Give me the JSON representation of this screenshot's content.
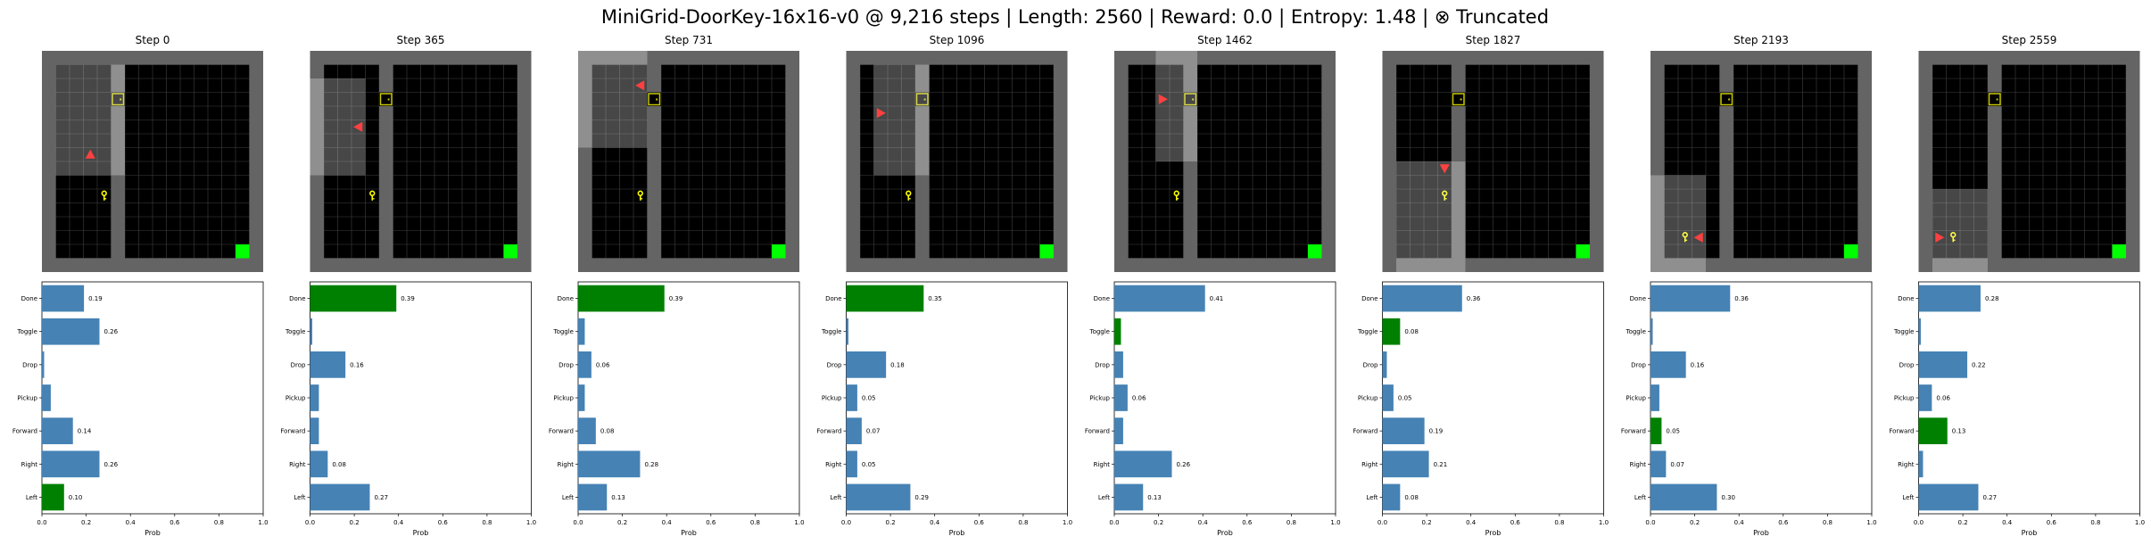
{
  "suptitle": "MiniGrid-DoorKey-16x16-v0 @ 9,216 steps | Length: 2560 | Reward: 0.0 | Entropy: 1.48 | ⊗ Truncated",
  "colors": {
    "bar": "#4682b4",
    "selected_bar": "#008000",
    "wall": "#646464",
    "floor": "#000000",
    "grid_line": "#404040",
    "door": "#c8c800",
    "key": "#ffff00",
    "goal": "#00ff00",
    "agent": "#ff4040",
    "visible_overlay": "#ffffff"
  },
  "chart_data": [
    {
      "type": "bar",
      "orientation": "horizontal",
      "title": "Step 0",
      "xlabel": "Prob",
      "xlim": [
        0,
        1
      ],
      "xticks": [
        "0.0",
        "0.2",
        "0.4",
        "0.6",
        "0.8",
        "1.0"
      ],
      "categories": [
        "Done",
        "Toggle",
        "Drop",
        "Pickup",
        "Forward",
        "Right",
        "Left"
      ],
      "values": [
        0.19,
        0.26,
        0.01,
        0.04,
        0.14,
        0.26,
        0.1
      ],
      "value_labels": [
        "0.19",
        "0.26",
        "",
        "",
        "0.14",
        "0.26",
        "0.10"
      ],
      "selected": "Left"
    },
    {
      "type": "bar",
      "orientation": "horizontal",
      "title": "Step 365",
      "xlabel": "Prob",
      "xlim": [
        0,
        1
      ],
      "xticks": [
        "0.0",
        "0.2",
        "0.4",
        "0.6",
        "0.8",
        "1.0"
      ],
      "categories": [
        "Done",
        "Toggle",
        "Drop",
        "Pickup",
        "Forward",
        "Right",
        "Left"
      ],
      "values": [
        0.39,
        0.01,
        0.16,
        0.04,
        0.04,
        0.08,
        0.27
      ],
      "value_labels": [
        "0.39",
        "",
        "0.16",
        "",
        "",
        "0.08",
        "0.27"
      ],
      "selected": "Done"
    },
    {
      "type": "bar",
      "orientation": "horizontal",
      "title": "Step 731",
      "xlabel": "Prob",
      "xlim": [
        0,
        1
      ],
      "xticks": [
        "0.0",
        "0.2",
        "0.4",
        "0.6",
        "0.8",
        "1.0"
      ],
      "categories": [
        "Done",
        "Toggle",
        "Drop",
        "Pickup",
        "Forward",
        "Right",
        "Left"
      ],
      "values": [
        0.39,
        0.03,
        0.06,
        0.03,
        0.08,
        0.28,
        0.13
      ],
      "value_labels": [
        "0.39",
        "",
        "0.06",
        "",
        "0.08",
        "0.28",
        "0.13"
      ],
      "selected": "Done"
    },
    {
      "type": "bar",
      "orientation": "horizontal",
      "title": "Step 1096",
      "xlabel": "Prob",
      "xlim": [
        0,
        1
      ],
      "xticks": [
        "0.0",
        "0.2",
        "0.4",
        "0.6",
        "0.8",
        "1.0"
      ],
      "categories": [
        "Done",
        "Toggle",
        "Drop",
        "Pickup",
        "Forward",
        "Right",
        "Left"
      ],
      "values": [
        0.35,
        0.01,
        0.18,
        0.05,
        0.07,
        0.05,
        0.29
      ],
      "value_labels": [
        "0.35",
        "",
        "0.18",
        "0.05",
        "0.07",
        "0.05",
        "0.29"
      ],
      "selected": "Done"
    },
    {
      "type": "bar",
      "orientation": "horizontal",
      "title": "Step 1462",
      "xlabel": "Prob",
      "xlim": [
        0,
        1
      ],
      "xticks": [
        "0.0",
        "0.2",
        "0.4",
        "0.6",
        "0.8",
        "1.0"
      ],
      "categories": [
        "Done",
        "Toggle",
        "Drop",
        "Pickup",
        "Forward",
        "Right",
        "Left"
      ],
      "values": [
        0.41,
        0.03,
        0.04,
        0.06,
        0.04,
        0.26,
        0.13
      ],
      "value_labels": [
        "0.41",
        "",
        "",
        "0.06",
        "",
        "0.26",
        "0.13"
      ],
      "selected": "Toggle"
    },
    {
      "type": "bar",
      "orientation": "horizontal",
      "title": "Step 1827",
      "xlabel": "Prob",
      "xlim": [
        0,
        1
      ],
      "xticks": [
        "0.0",
        "0.2",
        "0.4",
        "0.6",
        "0.8",
        "1.0"
      ],
      "categories": [
        "Done",
        "Toggle",
        "Drop",
        "Pickup",
        "Forward",
        "Right",
        "Left"
      ],
      "values": [
        0.36,
        0.08,
        0.02,
        0.05,
        0.19,
        0.21,
        0.08
      ],
      "value_labels": [
        "0.36",
        "0.08",
        "",
        "0.05",
        "0.19",
        "0.21",
        "0.08"
      ],
      "selected": "Toggle"
    },
    {
      "type": "bar",
      "orientation": "horizontal",
      "title": "Step 2193",
      "xlabel": "Prob",
      "xlim": [
        0,
        1
      ],
      "xticks": [
        "0.0",
        "0.2",
        "0.4",
        "0.6",
        "0.8",
        "1.0"
      ],
      "categories": [
        "Done",
        "Toggle",
        "Drop",
        "Pickup",
        "Forward",
        "Right",
        "Left"
      ],
      "values": [
        0.36,
        0.01,
        0.16,
        0.04,
        0.05,
        0.07,
        0.3
      ],
      "value_labels": [
        "0.36",
        "",
        "0.16",
        "",
        "0.05",
        "0.07",
        "0.30"
      ],
      "selected": "Forward"
    },
    {
      "type": "bar",
      "orientation": "horizontal",
      "title": "Step 2559",
      "xlabel": "Prob",
      "xlim": [
        0,
        1
      ],
      "xticks": [
        "0.0",
        "0.2",
        "0.4",
        "0.6",
        "0.8",
        "1.0"
      ],
      "categories": [
        "Done",
        "Toggle",
        "Drop",
        "Pickup",
        "Forward",
        "Right",
        "Left"
      ],
      "values": [
        0.28,
        0.01,
        0.22,
        0.06,
        0.13,
        0.02,
        0.27
      ],
      "value_labels": [
        "0.28",
        "",
        "0.22",
        "0.06",
        "0.13",
        "",
        "0.27"
      ],
      "selected": "Forward"
    }
  ],
  "env_frames": [
    {
      "title": "Step 0",
      "agent": {
        "col": 3,
        "row": 7,
        "dir": "up"
      },
      "view": {
        "c0": 1,
        "c1": 5,
        "r0": 1,
        "r1": 8
      },
      "door": {
        "col": 5,
        "row": 3
      },
      "key": {
        "col": 4,
        "row": 10
      },
      "goal": {
        "col": 14,
        "row": 14
      }
    },
    {
      "title": "Step 365",
      "agent": {
        "col": 3,
        "row": 5,
        "dir": "left"
      },
      "view": {
        "c0": 0,
        "c1": 3,
        "r0": 2,
        "r1": 8
      },
      "door": {
        "col": 5,
        "row": 3
      },
      "key": {
        "col": 4,
        "row": 10
      },
      "goal": {
        "col": 14,
        "row": 14
      }
    },
    {
      "title": "Step 731",
      "agent": {
        "col": 4,
        "row": 2,
        "dir": "left"
      },
      "view": {
        "c0": 0,
        "c1": 4,
        "r0": 0,
        "r1": 6
      },
      "door": {
        "col": 5,
        "row": 3
      },
      "key": {
        "col": 4,
        "row": 10
      },
      "goal": {
        "col": 14,
        "row": 14
      }
    },
    {
      "title": "Step 1096",
      "agent": {
        "col": 2,
        "row": 4,
        "dir": "right"
      },
      "view": {
        "c0": 2,
        "c1": 5,
        "r0": 1,
        "r1": 8
      },
      "door": {
        "col": 5,
        "row": 3
      },
      "key": {
        "col": 4,
        "row": 10
      },
      "goal": {
        "col": 14,
        "row": 14
      }
    },
    {
      "title": "Step 1462",
      "agent": {
        "col": 3,
        "row": 3,
        "dir": "right"
      },
      "view": {
        "c0": 3,
        "c1": 5,
        "r0": 0,
        "r1": 7
      },
      "door": {
        "col": 5,
        "row": 3
      },
      "key": {
        "col": 4,
        "row": 10
      },
      "goal": {
        "col": 14,
        "row": 14
      }
    },
    {
      "title": "Step 1827",
      "agent": {
        "col": 4,
        "row": 8,
        "dir": "down"
      },
      "view": {
        "c0": 1,
        "c1": 5,
        "r0": 8,
        "r1": 15
      },
      "door": {
        "col": 5,
        "row": 3
      },
      "key": {
        "col": 4,
        "row": 10
      },
      "goal": {
        "col": 14,
        "row": 14
      }
    },
    {
      "title": "Step 2193",
      "agent": {
        "col": 3,
        "row": 13,
        "dir": "left"
      },
      "view": {
        "c0": 0,
        "c1": 3,
        "r0": 9,
        "r1": 15
      },
      "door": {
        "col": 5,
        "row": 3
      },
      "key": {
        "col": 2,
        "row": 13
      },
      "goal": {
        "col": 14,
        "row": 14
      }
    },
    {
      "title": "Step 2559",
      "agent": {
        "col": 1,
        "row": 13,
        "dir": "right"
      },
      "view": {
        "c0": 1,
        "c1": 4,
        "r0": 10,
        "r1": 15
      },
      "door": {
        "col": 5,
        "row": 3
      },
      "key": {
        "col": 2,
        "row": 13
      },
      "goal": {
        "col": 14,
        "row": 14
      }
    }
  ]
}
